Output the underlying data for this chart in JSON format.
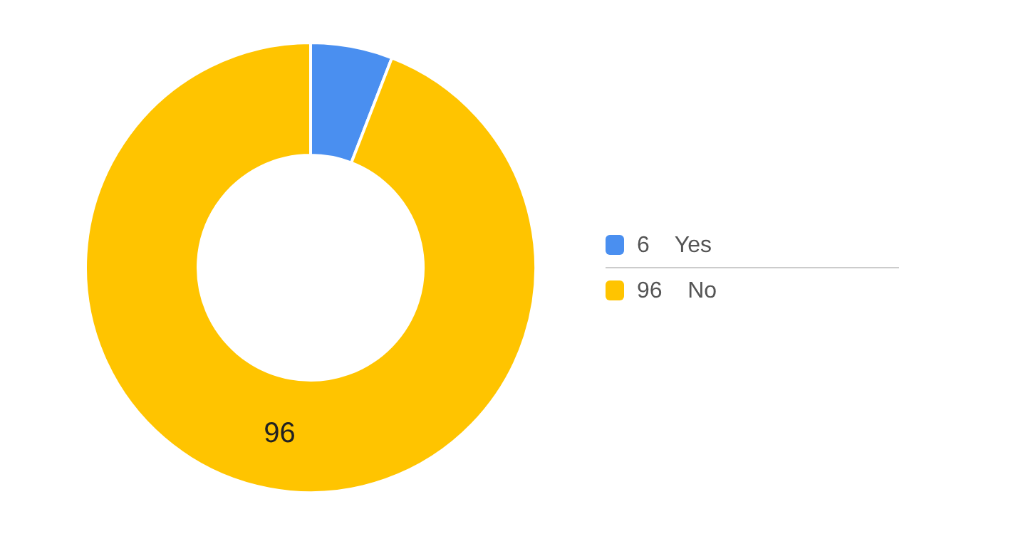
{
  "chart_data": {
    "type": "donut",
    "categories": [
      "Yes",
      "No"
    ],
    "values": [
      6,
      96
    ],
    "colors": [
      "#4a8ff0",
      "#ffc400"
    ],
    "data_labels": true,
    "annotations": [
      {
        "text": "96",
        "x": "No"
      }
    ],
    "legend": "right"
  }
}
